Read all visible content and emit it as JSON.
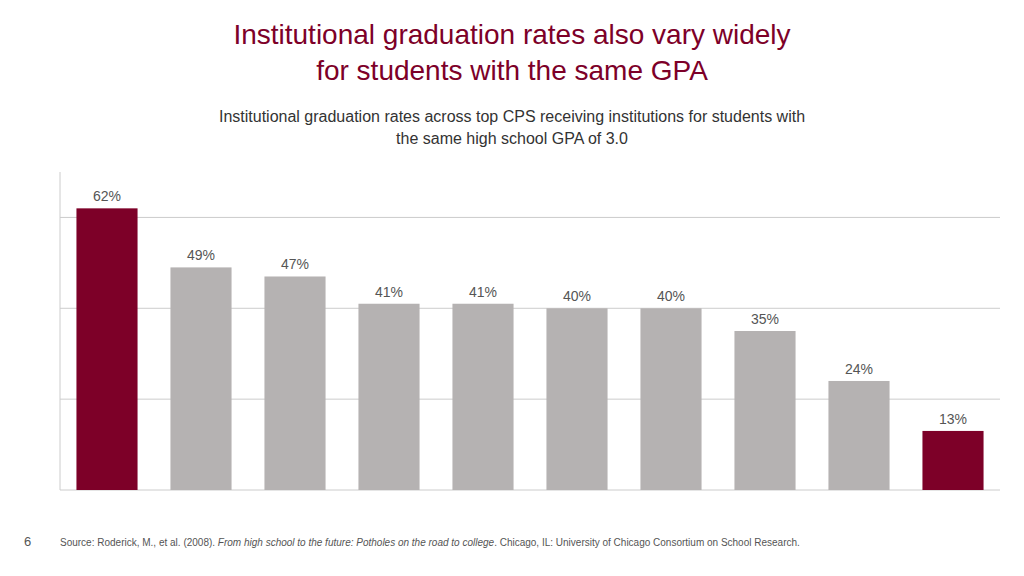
{
  "chart_data": {
    "type": "bar",
    "title": [
      "Institutional graduation rates also vary widely",
      "for students with the same GPA"
    ],
    "subtitle": [
      "Institutional graduation rates across top CPS receiving institutions for students with",
      "the same high school GPA of 3.0"
    ],
    "categories": [
      null,
      null,
      null,
      null,
      null,
      null,
      null,
      null,
      null,
      null
    ],
    "values": [
      62,
      49,
      47,
      41,
      41,
      40,
      40,
      35,
      24,
      13
    ],
    "value_labels": [
      "62%",
      "49%",
      "47%",
      "41%",
      "41%",
      "40%",
      "40%",
      "35%",
      "24%",
      "13%"
    ],
    "colors": [
      "#7d0028",
      "#b5b2b2",
      "#b5b2b2",
      "#b5b2b2",
      "#b5b2b2",
      "#b5b2b2",
      "#b5b2b2",
      "#b5b2b2",
      "#b5b2b2",
      "#7d0028"
    ],
    "title_color": "#7d0028",
    "ylim": [
      0,
      70
    ],
    "yticks": [
      0,
      20,
      40,
      60
    ],
    "grid": true,
    "data_labels": true,
    "tick_labels": false,
    "annotations": [
      "6"
    ],
    "footnote": [
      "Source: Roderick, M., et al. (2008). ",
      "From high school to the future: Potholes on the road to college",
      ". Chicago, IL: University of Chicago Consortium on School Research."
    ]
  }
}
